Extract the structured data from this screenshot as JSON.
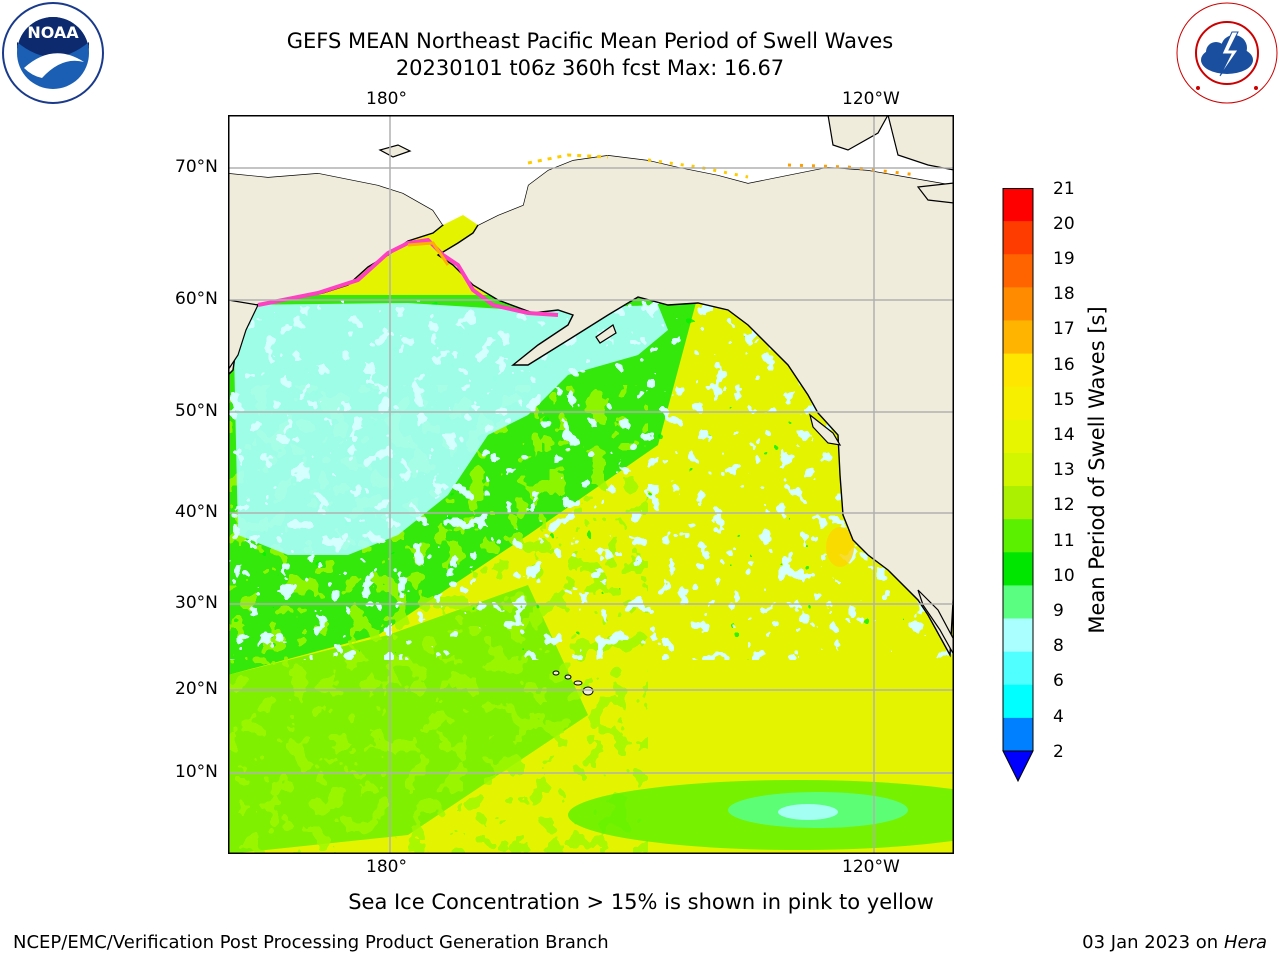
{
  "header": {
    "title_line1": "GEFS MEAN Northeast Pacific Mean Period of Swell Waves",
    "title_line2": "20230101 t06z 360h fcst   Max: 16.67"
  },
  "logos": {
    "noaa": {
      "text": "NOAA",
      "ring_text": "NATIONAL OCEANIC AND ATMOSPHERIC ADMINISTRATION · U.S. DEPARTMENT OF COMMERCE"
    },
    "nws": {
      "ring_text": "NATIONAL WEATHER SERVICE"
    }
  },
  "map": {
    "lon_labels_top": [
      "180°",
      "120°W"
    ],
    "lon_labels_bottom": [
      "180°",
      "120°W"
    ],
    "lat_labels": [
      "70°N",
      "60°N",
      "50°N",
      "40°N",
      "30°N",
      "20°N",
      "10°N"
    ],
    "colors": {
      "land": "#efecdc",
      "grid": "#b0b0b0",
      "coast": "#000000"
    }
  },
  "colorbar": {
    "label": "Mean Period of Swell Waves [s]",
    "ticks": [
      "21",
      "20",
      "19",
      "18",
      "17",
      "16",
      "15",
      "14",
      "13",
      "12",
      "11",
      "10",
      "9",
      "8",
      "6",
      "4",
      "2"
    ],
    "colors": [
      "#ff0000",
      "#ff3c00",
      "#ff6400",
      "#ff8c00",
      "#ffb400",
      "#ffe600",
      "#f6f000",
      "#e8f500",
      "#d2f500",
      "#aaf000",
      "#5af000",
      "#00e600",
      "#5aff82",
      "#aaffff",
      "#50ffff",
      "#00ffff",
      "#0080ff"
    ],
    "under_color": "#0000ff"
  },
  "notes": {
    "sea_ice": "Sea Ice Concentration > 15% is shown in pink to yellow"
  },
  "footer": {
    "left": "NCEP/EMC/Verification Post Processing Product Generation Branch",
    "right_prefix": "03 Jan 2023 on ",
    "right_host": "Hera"
  }
}
